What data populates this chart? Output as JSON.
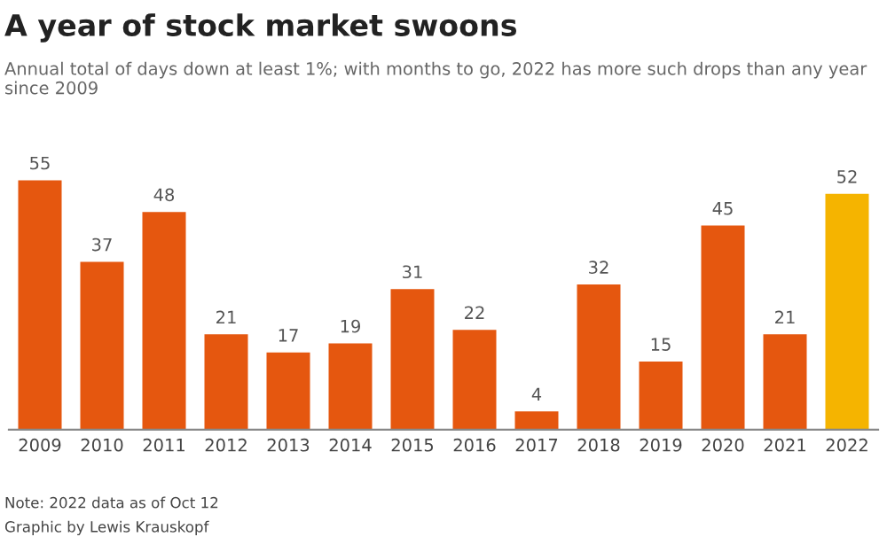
{
  "chart_data": {
    "type": "bar",
    "title": "A year of stock market swoons",
    "subtitle": "Annual total of days down at least 1%; with months to go, 2022 has more such drops than any year since 2009",
    "categories": [
      "2009",
      "2010",
      "2011",
      "2012",
      "2013",
      "2014",
      "2015",
      "2016",
      "2017",
      "2018",
      "2019",
      "2020",
      "2021",
      "2022"
    ],
    "values": [
      55,
      37,
      48,
      21,
      17,
      19,
      31,
      22,
      4,
      32,
      15,
      45,
      21,
      52
    ],
    "colors": [
      "#e5570f",
      "#e5570f",
      "#e5570f",
      "#e5570f",
      "#e5570f",
      "#e5570f",
      "#e5570f",
      "#e5570f",
      "#e5570f",
      "#e5570f",
      "#e5570f",
      "#e5570f",
      "#e5570f",
      "#f5b400"
    ],
    "data_labels": true,
    "grid": false,
    "legend": false,
    "annotations": [
      "Note: 2022 data as of Oct 12",
      "Graphic by Lewis Krauskopf"
    ]
  }
}
